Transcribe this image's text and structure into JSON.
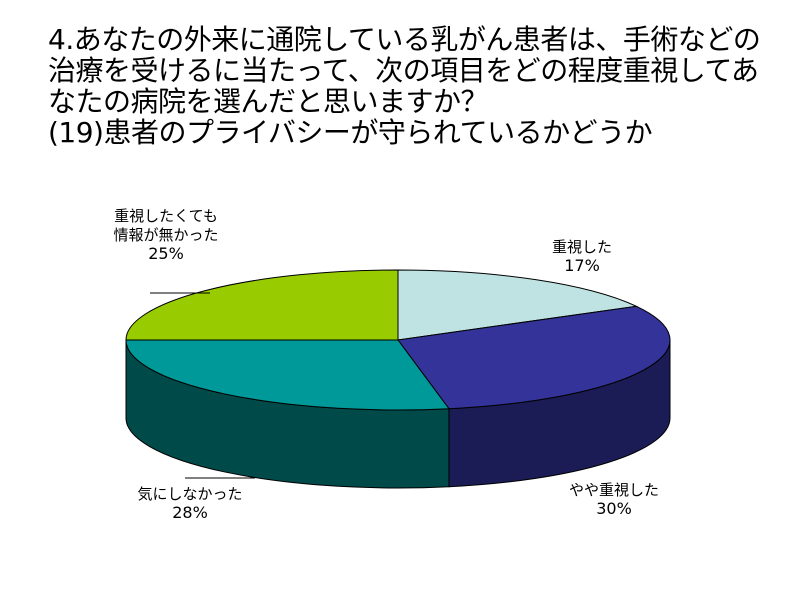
{
  "title_lines": [
    "4.あなたの外来に通院している乳がん患者は、手術などの",
    "治療を受けるに当たって、次の項目をどの程度重視してあ",
    "なたの病院を選んだと思いますか？",
    "(19)患者のプライバシーが守られているかどうか"
  ],
  "chart_data": {
    "type": "pie",
    "style": "3d",
    "title": "4.あなたの外来に通院している乳がん患者は、手術などの治療を受けるに当たって、次の項目をどの程度重視してあなたの病院を選んだと思いますか？ (19)患者のプライバシーが守られているかどうか",
    "slices": [
      {
        "label_lines": [
          "重視した"
        ],
        "value": 17,
        "value_label": "17%",
        "color": "#BFE3E3",
        "side_color": "#8FB5B5"
      },
      {
        "label_lines": [
          "やや重視した"
        ],
        "value": 30,
        "value_label": "30%",
        "color": "#333399",
        "side_color": "#1B1B55"
      },
      {
        "label_lines": [
          "気にしなかった"
        ],
        "value": 28,
        "value_label": "28%",
        "color": "#009999",
        "side_color": "#004A4A"
      },
      {
        "label_lines": [
          "重視したくても",
          "情報が無かった"
        ],
        "value": 25,
        "value_label": "25%",
        "color": "#99CC00",
        "side_color": "#5E7D00"
      }
    ]
  }
}
